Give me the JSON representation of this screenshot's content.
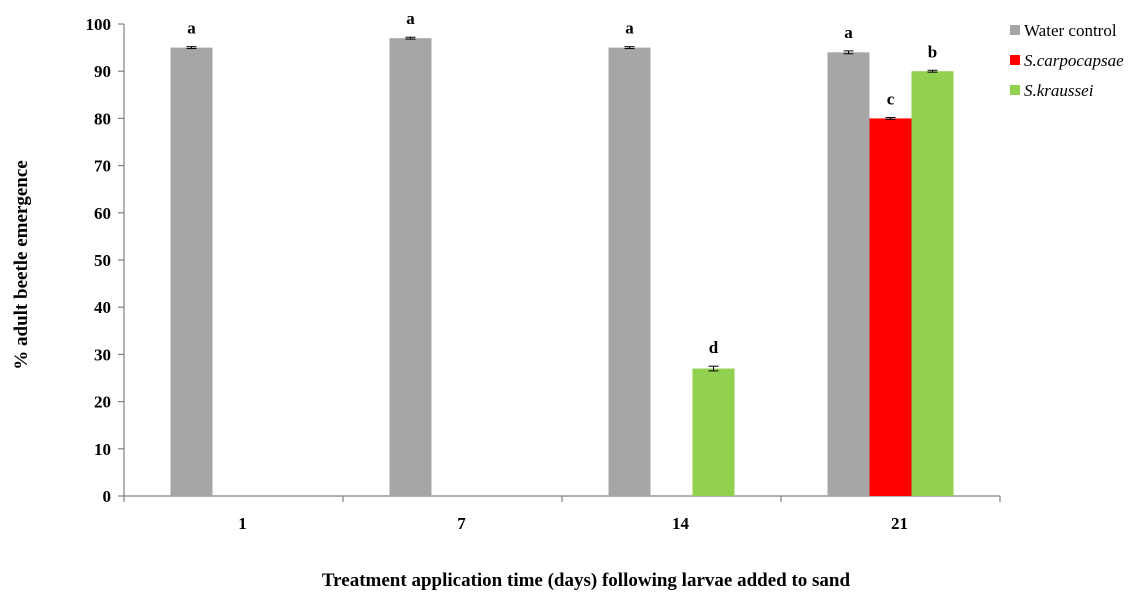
{
  "chart_data": {
    "type": "bar",
    "title": "",
    "xlabel": "Treatment application time (days) following larvae added to sand",
    "ylabel": "% adult beetle emergence",
    "categories": [
      "1",
      "7",
      "14",
      "21"
    ],
    "ylim": [
      0,
      100
    ],
    "yticks": [
      0,
      10,
      20,
      30,
      40,
      50,
      60,
      70,
      80,
      90,
      100
    ],
    "grid": false,
    "legend_position": "top-right",
    "series": [
      {
        "name": "Water control",
        "color": "#a6a6a6",
        "values": [
          95,
          97,
          95,
          94
        ],
        "errors": [
          0.2,
          0.2,
          0.2,
          0.3
        ],
        "labels": [
          "a",
          "a",
          "a",
          "a"
        ]
      },
      {
        "name": "S.carpocapsae",
        "color": "#ff0000",
        "values": [
          null,
          null,
          null,
          80
        ],
        "errors": [
          null,
          null,
          null,
          0.2
        ],
        "labels": [
          "",
          "",
          "",
          "c"
        ]
      },
      {
        "name": "S.kraussei",
        "color": "#92d050",
        "values": [
          null,
          null,
          27,
          90
        ],
        "errors": [
          null,
          null,
          0.5,
          0.2
        ],
        "labels": [
          "",
          "",
          "d",
          "b"
        ]
      }
    ]
  }
}
